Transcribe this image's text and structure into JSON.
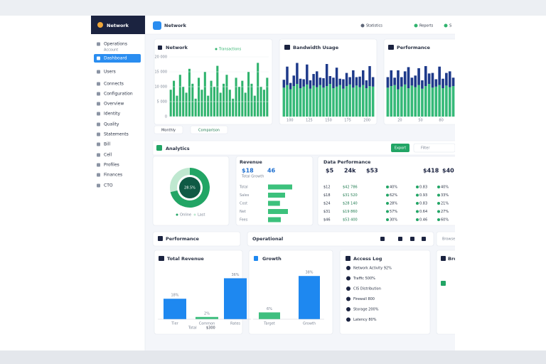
{
  "sidebar": {
    "brand": "Network",
    "items": [
      "Operations",
      "Account",
      "Dashboard",
      "Users",
      "Connects",
      "Configuration",
      "Overview",
      "Identity",
      "Quality",
      "Statements",
      "Bill",
      "Cell",
      "Profiles",
      "Finances",
      "CTO"
    ],
    "active": 2
  },
  "header": {
    "title": "Network",
    "actions": [
      "Statistics",
      "Reports",
      "S"
    ]
  },
  "top_cards": [
    {
      "title": "Network",
      "legend": "Transactions",
      "type": "bar",
      "color": "#2fb36d",
      "values": [
        9000,
        12000,
        7000,
        14000,
        10000,
        8000,
        16000,
        11000,
        6000,
        13000,
        9000,
        15000,
        7000,
        12000,
        10000,
        17000,
        8000,
        11000,
        14000,
        9000,
        6000,
        13000,
        10000,
        12000,
        8000,
        15000,
        11000,
        7000,
        18000,
        10000,
        9000,
        13000
      ],
      "ylim": [
        0,
        20000
      ],
      "yticks": [
        0,
        {
          "value": 5000,
          "label": "5 000"
        },
        {
          "value": 10000,
          "label": "10 000"
        },
        {
          "value": 15000,
          "label": "15 000"
        },
        {
          "value": 20000,
          "label": "20 000"
        }
      ],
      "buttons": [
        "Monthly",
        "Comparison"
      ]
    },
    {
      "title": "Bandwidth Usage",
      "type": "stacked_bar",
      "series": [
        {
          "color": "#35b978",
          "values": [
            55,
            60,
            52,
            58,
            62,
            54,
            57,
            61,
            53,
            59,
            56,
            60,
            55,
            58,
            62,
            54,
            57,
            60,
            53,
            58,
            61,
            55,
            59,
            56,
            60,
            54,
            58,
            57
          ]
        },
        {
          "color": "#1e3a8a",
          "values": [
            15,
            35,
            12,
            20,
            40,
            18,
            14,
            38,
            16,
            22,
            30,
            14,
            18,
            42,
            15,
            20,
            36,
            12,
            18,
            25,
            14,
            33,
            16,
            20,
            28,
            15,
            38,
            18
          ]
        }
      ],
      "ylim": [
        0,
        100
      ],
      "xlim": [
        90,
        210
      ],
      "xticks": [
        100,
        125,
        150,
        175,
        200
      ]
    },
    {
      "title": "Performance",
      "type": "stacked_bar",
      "series": [
        {
          "color": "#35b978",
          "values": [
            55,
            58,
            60,
            52,
            57,
            61,
            54,
            59,
            56,
            60,
            53,
            58,
            62,
            55,
            57,
            60,
            54,
            59,
            56,
            58
          ]
        },
        {
          "color": "#1e3a8a",
          "values": [
            20,
            30,
            14,
            36,
            18,
            25,
            40,
            15,
            22,
            32,
            16,
            38,
            20,
            28,
            14,
            35,
            18,
            24,
            30,
            16
          ]
        }
      ],
      "ylim": [
        0,
        100
      ],
      "xlim": [
        0,
        100
      ],
      "xticks": [
        20,
        50,
        80
      ]
    }
  ],
  "analytics": {
    "title": "Analytics",
    "export": "Export",
    "filter": "Filter",
    "donut": {
      "type": "pie",
      "values": [
        71.5,
        28.5
      ],
      "colors": [
        "#22a565",
        "#bfe8d0"
      ],
      "center_label": "28.5%",
      "legend": [
        "Online",
        "Last"
      ]
    },
    "revenue": {
      "title": "Revenue",
      "stats": [
        "$18",
        "46"
      ],
      "subtitle": "Total Growth",
      "type": "hbar",
      "color": "#3cc17c",
      "categories": [
        "Total",
        "Sales",
        "Cost",
        "Net",
        "Fees"
      ],
      "values": [
        85,
        60,
        42,
        70,
        45
      ],
      "xlim": [
        0,
        100
      ]
    },
    "data_performance": {
      "title": "Data Performance",
      "stats": [
        "$5",
        "24k",
        "$53",
        "$418",
        "$40"
      ],
      "rows": [
        [
          "$12",
          "$42 786",
          "40%",
          "0.83",
          "40%"
        ],
        [
          "$18",
          "$31 520",
          "62%",
          "0.93",
          "33%"
        ],
        [
          "$24",
          "$28 140",
          "28%",
          "0.83",
          "21%"
        ],
        [
          "$31",
          "$19 860",
          "57%",
          "0.64",
          "27%"
        ],
        [
          "$46",
          "$53 400",
          "30%",
          "0.46",
          "60%"
        ]
      ]
    }
  },
  "bottom": {
    "performance": "Performance",
    "operational": "Operational",
    "browser": "Browser",
    "total_revenue": {
      "title": "Total Revenue",
      "type": "bar",
      "color": "#1e88f0",
      "categories": [
        "Tier",
        "Common",
        "Rates"
      ],
      "values": [
        18,
        2,
        36
      ],
      "value_labels": [
        "18%",
        "2%",
        "36%"
      ],
      "colors": [
        "#1e88f0",
        "#3fbf7f",
        "#1e88f0"
      ],
      "ylim": [
        0,
        40
      ],
      "footer": [
        "Total",
        "$300"
      ]
    },
    "growth": {
      "title": "Growth",
      "type": "bar",
      "categories": [
        "Target",
        "Growth"
      ],
      "values": [
        6,
        38
      ],
      "value_labels": [
        "6%",
        "38%"
      ],
      "colors": [
        "#3fbf7f",
        "#1e88f0"
      ],
      "ylim": [
        0,
        40
      ]
    },
    "access_log": {
      "title": "Access Log",
      "items": [
        "Network Activity 92%",
        "Traffic 500%",
        "CIS Distribution",
        "Firewall 800",
        "Storage 200%",
        "Latency 80%"
      ]
    },
    "side": {
      "title": "Bro"
    }
  }
}
